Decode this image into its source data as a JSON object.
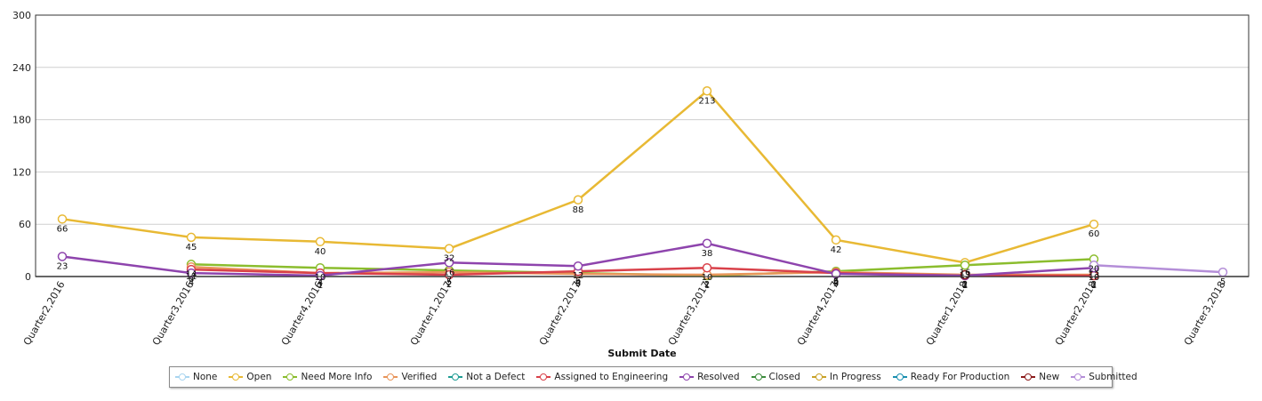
{
  "chart_data": {
    "type": "line",
    "title": "",
    "xlabel": "Submit Date",
    "ylabel": "",
    "ylim": [
      0,
      300
    ],
    "yticks": [
      0,
      60,
      120,
      180,
      240,
      300
    ],
    "categories": [
      "Quarter2,2016",
      "Quarter3,2016",
      "Quarter4,2016",
      "Quarter1,2017",
      "Quarter2,2017",
      "Quarter3,2017",
      "Quarter4,2017",
      "Quarter1,2018",
      "Quarter2,2018",
      "Quarter3,2018"
    ],
    "series": [
      {
        "name": "None",
        "color": "#a9d5f0",
        "values": [
          null,
          null,
          null,
          null,
          null,
          null,
          null,
          null,
          null,
          null
        ]
      },
      {
        "name": "Open",
        "color": "#e8b934",
        "values": [
          66,
          45,
          40,
          32,
          88,
          213,
          42,
          16,
          60,
          null
        ]
      },
      {
        "name": "Need More Info",
        "color": "#8bbd2e",
        "values": [
          null,
          14,
          10,
          7,
          4,
          1,
          6,
          13,
          20,
          null
        ]
      },
      {
        "name": "Verified",
        "color": "#e8955a",
        "values": [
          null,
          11,
          4,
          5,
          3,
          2,
          5,
          2,
          2,
          null
        ]
      },
      {
        "name": "Not a Defect",
        "color": "#1f9c94",
        "values": [
          null,
          null,
          null,
          null,
          null,
          null,
          null,
          null,
          null,
          null
        ]
      },
      {
        "name": "Assigned to Engineering",
        "color": "#d9414a",
        "values": [
          null,
          8,
          4,
          2,
          6,
          10,
          4,
          1,
          1,
          null
        ]
      },
      {
        "name": "Resolved",
        "color": "#8e44ad",
        "values": [
          23,
          4,
          1,
          16,
          12,
          38,
          3,
          1,
          10,
          null
        ]
      },
      {
        "name": "Closed",
        "color": "#3c8c3c",
        "values": [
          null,
          null,
          null,
          null,
          null,
          null,
          null,
          null,
          null,
          null
        ]
      },
      {
        "name": "In Progress",
        "color": "#c9a227",
        "values": [
          null,
          null,
          null,
          null,
          null,
          null,
          null,
          null,
          null,
          null
        ]
      },
      {
        "name": "Ready For Production",
        "color": "#1a8fb0",
        "values": [
          null,
          null,
          null,
          null,
          null,
          null,
          null,
          null,
          null,
          null
        ]
      },
      {
        "name": "New",
        "color": "#8b1a1a",
        "values": [
          null,
          null,
          null,
          null,
          null,
          null,
          null,
          2,
          null,
          null
        ]
      },
      {
        "name": "Submitted",
        "color": "#b48ed8",
        "values": [
          null,
          null,
          null,
          null,
          null,
          null,
          null,
          null,
          13,
          5
        ]
      }
    ]
  }
}
